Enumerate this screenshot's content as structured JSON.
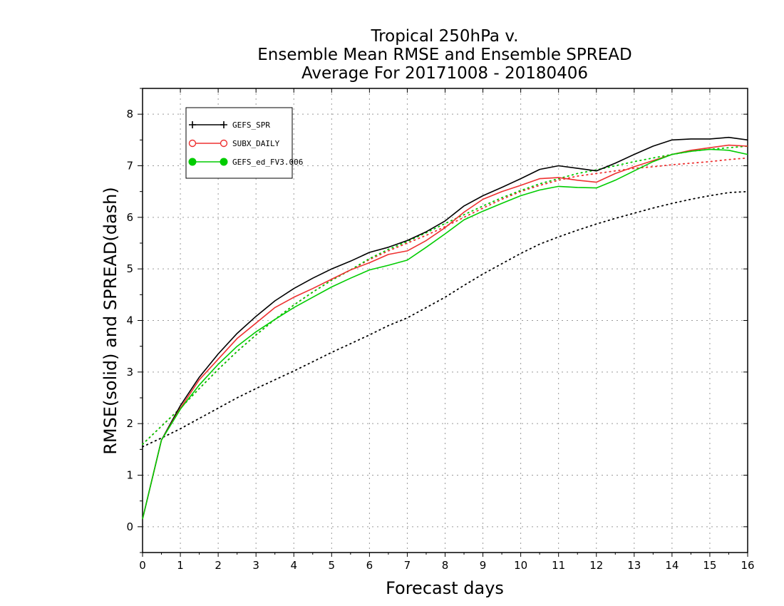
{
  "chart_data": {
    "type": "line",
    "title": [
      "Tropical 250hPa v.",
      "Ensemble Mean RMSE and Ensemble SPREAD",
      "Average For 20171008 - 20180406"
    ],
    "xlabel": "Forecast days",
    "ylabel": "RMSE(solid) and SPREAD(dash)",
    "xlim": [
      0,
      16
    ],
    "ylim": [
      -0.5,
      8.5
    ],
    "xticks": [
      "0",
      "1",
      "2",
      "3",
      "4",
      "5",
      "6",
      "7",
      "8",
      "9",
      "10",
      "11",
      "12",
      "13",
      "14",
      "15",
      "16"
    ],
    "yticks": [
      "0",
      "1",
      "2",
      "3",
      "4",
      "5",
      "6",
      "7",
      "8"
    ],
    "grid": true,
    "legend_position": "top-left",
    "x": [
      0,
      0.5,
      1,
      1.5,
      2,
      2.5,
      3,
      3.5,
      4,
      4.5,
      5,
      5.5,
      6,
      6.5,
      7,
      7.5,
      8,
      8.5,
      9,
      9.5,
      10,
      10.5,
      11,
      11.5,
      12,
      12.5,
      13,
      13.5,
      14,
      14.5,
      15,
      15.5,
      16
    ],
    "series": [
      {
        "name": "GEFS_SPR",
        "color": "#000000",
        "marker": "plus",
        "rmse": [
          0.15,
          1.68,
          2.35,
          2.9,
          3.35,
          3.75,
          4.08,
          4.38,
          4.62,
          4.82,
          5.0,
          5.15,
          5.32,
          5.42,
          5.55,
          5.72,
          5.93,
          6.22,
          6.42,
          6.58,
          6.75,
          6.93,
          7.0,
          6.95,
          6.9,
          7.05,
          7.22,
          7.38,
          7.5,
          7.52,
          7.52,
          7.55,
          7.5
        ],
        "spread": [
          1.55,
          1.72,
          1.9,
          2.1,
          2.3,
          2.5,
          2.68,
          2.85,
          3.02,
          3.2,
          3.38,
          3.55,
          3.72,
          3.9,
          4.05,
          4.25,
          4.45,
          4.68,
          4.9,
          5.1,
          5.3,
          5.48,
          5.62,
          5.75,
          5.87,
          5.98,
          6.08,
          6.18,
          6.27,
          6.35,
          6.42,
          6.48,
          6.5
        ]
      },
      {
        "name": "SUBX_DAILY",
        "color": "#ee3030",
        "marker": "open-circle",
        "rmse": [
          0.15,
          1.68,
          2.3,
          2.85,
          3.25,
          3.65,
          3.95,
          4.25,
          4.45,
          4.62,
          4.8,
          4.98,
          5.12,
          5.28,
          5.35,
          5.55,
          5.8,
          6.1,
          6.35,
          6.5,
          6.62,
          6.75,
          6.77,
          6.72,
          6.68,
          6.85,
          6.98,
          7.1,
          7.22,
          7.3,
          7.35,
          7.4,
          7.38
        ],
        "spread": [
          1.6,
          1.95,
          2.3,
          2.68,
          3.05,
          3.4,
          3.72,
          4.02,
          4.3,
          4.55,
          4.78,
          4.98,
          5.18,
          5.35,
          5.5,
          5.65,
          5.82,
          6.0,
          6.18,
          6.35,
          6.5,
          6.62,
          6.72,
          6.8,
          6.85,
          6.9,
          6.95,
          6.98,
          7.02,
          7.05,
          7.08,
          7.12,
          7.15
        ]
      },
      {
        "name": "GEFS_ed_FV3.006",
        "color": "#00cc00",
        "marker": "filled-circle",
        "rmse": [
          0.15,
          1.68,
          2.28,
          2.75,
          3.15,
          3.5,
          3.78,
          4.02,
          4.25,
          4.45,
          4.65,
          4.82,
          4.98,
          5.07,
          5.17,
          5.42,
          5.68,
          5.95,
          6.12,
          6.27,
          6.42,
          6.53,
          6.6,
          6.58,
          6.57,
          6.72,
          6.9,
          7.08,
          7.22,
          7.28,
          7.32,
          7.3,
          7.22
        ],
        "spread": [
          1.6,
          1.95,
          2.3,
          2.68,
          3.05,
          3.4,
          3.72,
          4.02,
          4.3,
          4.55,
          4.78,
          4.98,
          5.2,
          5.38,
          5.53,
          5.7,
          5.88,
          6.05,
          6.22,
          6.38,
          6.52,
          6.65,
          6.75,
          6.85,
          6.92,
          7.0,
          7.08,
          7.15,
          7.22,
          7.28,
          7.32,
          7.35,
          7.38
        ]
      }
    ]
  }
}
